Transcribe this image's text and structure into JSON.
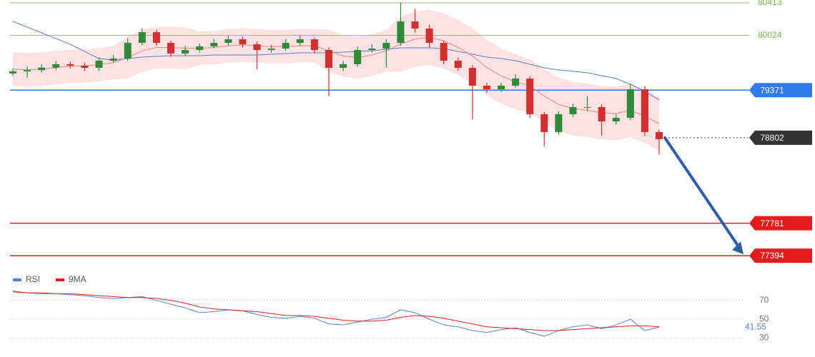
{
  "chart_data": [
    {
      "type": "candlestick",
      "ylim": [
        77207,
        80447
      ],
      "up_color": "#2e8b3a",
      "down_color": "#d32f2f",
      "open": [
        79570,
        79595,
        79610,
        79640,
        79680,
        79663,
        79637,
        79722,
        79748,
        79935,
        80063,
        79935,
        79808,
        79850,
        79893,
        79935,
        79978,
        79918,
        79850,
        79867,
        79935,
        79978,
        79850,
        79637,
        79680,
        79850,
        79867,
        79935,
        80191,
        80106,
        79935,
        79722,
        79637,
        79424,
        79381,
        79424,
        79509,
        79083,
        78870,
        79083,
        79168,
        79168,
        78997,
        79040,
        79381,
        78870
      ],
      "high": [
        79630,
        79650,
        79680,
        79720,
        79710,
        79700,
        79760,
        79790,
        79990,
        80110,
        80090,
        79960,
        79900,
        79930,
        79980,
        80020,
        80010,
        79950,
        79910,
        79980,
        80020,
        80000,
        79880,
        79720,
        79890,
        79920,
        79980,
        80420,
        80340,
        80150,
        79960,
        79760,
        79670,
        79460,
        79460,
        79560,
        79540,
        79110,
        79120,
        79210,
        79300,
        79200,
        79080,
        79440,
        79420,
        78900
      ],
      "low": [
        79540,
        79520,
        79580,
        79610,
        79630,
        79600,
        79600,
        79700,
        79720,
        79910,
        79900,
        79770,
        79780,
        79820,
        79870,
        79900,
        79880,
        79620,
        79820,
        79840,
        79900,
        79810,
        79300,
        79600,
        79650,
        79820,
        79640,
        79900,
        80060,
        79880,
        79680,
        79600,
        79020,
        79340,
        79350,
        79400,
        79040,
        78700,
        78840,
        79050,
        79120,
        78830,
        78960,
        79010,
        78820,
        78600
      ],
      "close": [
        79595,
        79610,
        79640,
        79680,
        79663,
        79637,
        79722,
        79748,
        79935,
        80063,
        79935,
        79808,
        79850,
        79893,
        79935,
        79978,
        79918,
        79850,
        79867,
        79935,
        79978,
        79850,
        79637,
        79680,
        79850,
        79867,
        79935,
        80191,
        80106,
        79935,
        79722,
        79637,
        79424,
        79381,
        79424,
        79509,
        79083,
        78870,
        79083,
        79168,
        79168,
        78997,
        79040,
        79381,
        78870,
        78785
      ],
      "band": {
        "color": "#fbd5d5",
        "upper": [
          79820,
          79815,
          79820,
          79840,
          79855,
          79860,
          79875,
          79900,
          80010,
          80090,
          80130,
          80130,
          80120,
          80070,
          80080,
          80100,
          80110,
          80100,
          80090,
          80090,
          80100,
          80100,
          80090,
          80030,
          80010,
          80040,
          80090,
          80250,
          80310,
          80330,
          80290,
          80210,
          80110,
          79970,
          79870,
          79800,
          79740,
          79620,
          79520,
          79470,
          79450,
          79420,
          79410,
          79450,
          79380,
          79290
        ],
        "lower": [
          79420,
          79415,
          79420,
          79440,
          79455,
          79460,
          79475,
          79500,
          79510,
          79590,
          79630,
          79630,
          79620,
          79670,
          79680,
          79700,
          79710,
          79700,
          79690,
          79690,
          79700,
          79700,
          79590,
          79530,
          79510,
          79540,
          79590,
          79590,
          79650,
          79670,
          79630,
          79550,
          79450,
          79310,
          79210,
          79140,
          79100,
          78980,
          78880,
          78830,
          78810,
          78780,
          78770,
          78810,
          78740,
          78650
        ]
      },
      "moving_averages": [
        {
          "color": "#5b7fc7",
          "values": [
            80191,
            80123,
            80055,
            79987,
            79918,
            79833,
            79748,
            79731,
            79748,
            79765,
            79774,
            79782,
            79782,
            79782,
            79790,
            79790,
            79790,
            79790,
            79799,
            79808,
            79816,
            79816,
            79816,
            79825,
            79833,
            79842,
            79859,
            79876,
            79876,
            79876,
            79867,
            79833,
            79799,
            79765,
            79748,
            79722,
            79680,
            79637,
            79612,
            79595,
            79578,
            79543,
            79509,
            79441,
            79356,
            79254
          ]
        },
        {
          "color": "#f08080",
          "values": [
            79620,
            79615,
            79620,
            79640,
            79655,
            79660,
            79675,
            79700,
            79760,
            79840,
            79880,
            79880,
            79870,
            79870,
            79880,
            79900,
            79910,
            79900,
            79890,
            79890,
            79900,
            79900,
            79840,
            79780,
            79760,
            79790,
            79840,
            79920,
            79980,
            80000,
            79960,
            79880,
            79780,
            79640,
            79540,
            79470,
            79420,
            79300,
            79200,
            79150,
            79130,
            79100,
            79090,
            79130,
            79060,
            78970
          ]
        }
      ],
      "levels": [
        {
          "value": 80413,
          "color": "#7cb342",
          "tag": false,
          "line": "solid"
        },
        {
          "value": 80024,
          "color": "#7cb342",
          "tag": false,
          "line": "solid"
        },
        {
          "value": 79371,
          "color": "#2f7bea",
          "tag": true,
          "line": "solid"
        },
        {
          "value": 78802,
          "color": "#333333",
          "tag": true,
          "line": "dotted"
        },
        {
          "value": 77781,
          "color": "#e51c1c",
          "tag": true,
          "line": "solid"
        },
        {
          "value": 77394,
          "color": "#e51c1c",
          "tag": true,
          "line": "solid"
        }
      ]
    },
    {
      "type": "line",
      "ylim": [
        10,
        97
      ],
      "yticks": [
        30,
        50,
        70
      ],
      "grid": true,
      "series": [
        {
          "name": "RSI",
          "color": "#5b7fdc",
          "values": [
            80,
            78,
            77,
            77,
            76,
            75,
            73,
            72,
            73,
            74,
            70,
            66,
            62,
            57,
            58,
            60,
            59,
            55,
            52,
            51,
            53,
            51,
            45,
            44,
            47,
            50,
            52,
            60,
            57,
            50,
            44,
            42,
            38,
            36,
            39,
            41,
            36,
            32,
            38,
            42,
            44,
            40,
            44,
            50,
            38,
            41.55
          ]
        },
        {
          "name": "9MA",
          "color": "#e02020",
          "values": [
            79,
            78,
            78,
            77,
            77,
            76,
            75,
            74,
            73,
            73,
            72,
            70,
            67,
            63,
            61,
            60,
            59,
            58,
            56,
            54,
            54,
            53,
            51,
            49,
            48,
            48,
            49,
            52,
            54,
            53,
            51,
            48,
            45,
            42,
            41,
            40,
            39,
            38,
            38,
            39,
            40,
            41,
            42,
            43,
            43,
            42
          ]
        }
      ]
    }
  ]
}
